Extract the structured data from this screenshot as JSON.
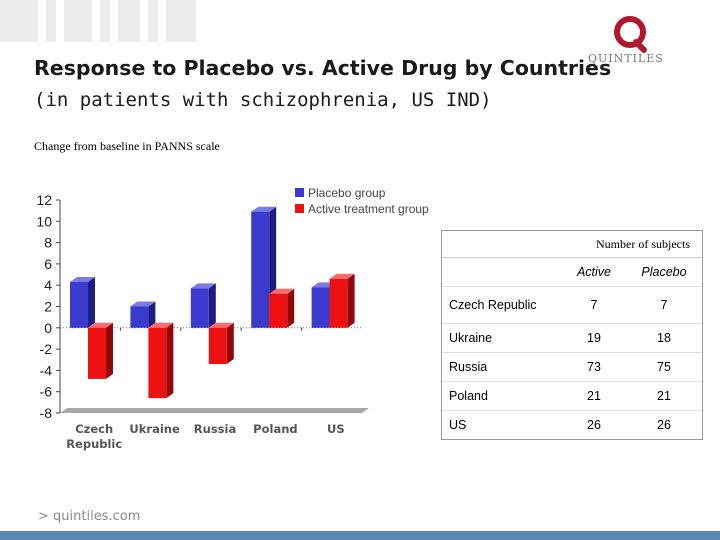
{
  "slide": {
    "title": "Response to Placebo vs. Active Drug by Countries",
    "subtitle": "(in patients with schizophrenia, US IND)",
    "note": "Change from baseline in PANNS scale",
    "brand_name": "QUINTILES",
    "footer_logo": "> quintiles.com"
  },
  "colors": {
    "placebo": "#3b3ccf",
    "active": "#ee1111",
    "brand": "#b0182e",
    "bottom_strip": "#5a87b4"
  },
  "chart_data": {
    "type": "bar",
    "categories": [
      "Czech Republic",
      "Ukraine",
      "Russia",
      "Poland",
      "US"
    ],
    "category_lines": [
      [
        "Czech",
        "Republic"
      ],
      [
        "Ukraine"
      ],
      [
        "Russia"
      ],
      [
        "Poland"
      ],
      [
        "US"
      ]
    ],
    "series": [
      {
        "name": "Placebo group",
        "values": [
          4.3,
          2.0,
          3.7,
          10.9,
          3.8
        ]
      },
      {
        "name": "Active treatment group",
        "values": [
          -4.8,
          -6.6,
          -3.4,
          3.2,
          4.6
        ]
      }
    ],
    "y_ticks": [
      "12",
      "10",
      "8",
      "6",
      "4",
      "2",
      "0",
      "-2",
      "-4",
      "-6",
      "-8"
    ],
    "ylim": [
      -8,
      12
    ],
    "grid": false,
    "legend": "top-right"
  },
  "table": {
    "title": "Number of subjects",
    "columns": [
      "Active",
      "Placebo"
    ],
    "rows": [
      {
        "country": "Czech Republic",
        "active": "7",
        "placebo": "7"
      },
      {
        "country": "Ukraine",
        "active": "19",
        "placebo": "18"
      },
      {
        "country": "Russia",
        "active": "73",
        "placebo": "75"
      },
      {
        "country": "Poland",
        "active": "21",
        "placebo": "21"
      },
      {
        "country": "US",
        "active": "26",
        "placebo": "26"
      }
    ]
  }
}
